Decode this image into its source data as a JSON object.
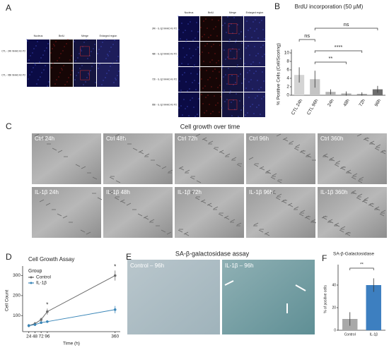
{
  "panel_labels": [
    "A",
    "B",
    "C",
    "D",
    "E",
    "F"
  ],
  "panel_a": {
    "columns": [
      "Nucleus",
      "BrdU",
      "Merge",
      "Enlarged region"
    ],
    "left_rows": [
      "CTL - 24h NHAC-Kn P2",
      "CTL - 96h NHAC-Kn P2"
    ],
    "right_rows": [
      "24h - IL-1β NHAC-Kn P2",
      "48h - IL-1β NHAC-Kn P2",
      "72h - IL-1β NHAC-Kn P2",
      "96h - IL-1β NHAC-Kn P2"
    ]
  },
  "panel_c": {
    "title": "Cell growth over time",
    "images": [
      [
        "Ctrl 24h",
        "Ctrl 48h",
        "Ctrl 72h",
        "Ctrl 96h",
        "Ctrl 360h"
      ],
      [
        "IL-1β 24h",
        "IL-1β 48h",
        "IL-1β 72h",
        "IL-1β 96h",
        "IL-1β 360h"
      ]
    ]
  },
  "panel_e": {
    "title": "SA-β-galactosidase assay",
    "images": [
      "Control – 96h",
      "IL-1β – 96h"
    ]
  },
  "chart_data": [
    {
      "type": "bar",
      "title": "BrdU incorporation (50 µM)",
      "y_label": "% Positive Cells (Cell/Scoring)",
      "categories": [
        "CTL 24h",
        "CTL 96h",
        "24h",
        "48h",
        "72h",
        "96h"
      ],
      "values": [
        4.8,
        3.8,
        0.8,
        0.4,
        0.3,
        1.4
      ],
      "errors": [
        1.8,
        2.0,
        0.6,
        0.5,
        0.4,
        0.8
      ],
      "colors": [
        "#d4d4d4",
        "#c4c4c4",
        "#b4b4b4",
        "#a4a4a4",
        "#949494",
        "#6e6e6e"
      ],
      "ylim": [
        0,
        10
      ],
      "yticks": [
        0,
        2,
        4,
        6,
        8,
        10
      ],
      "annotations": [
        {
          "text": "**",
          "between": [
            "CTL 96h",
            "48h"
          ]
        },
        {
          "text": "****",
          "between": [
            "CTL 96h",
            "72h"
          ]
        },
        {
          "text": "ns",
          "between": [
            "CTL 24h",
            "CTL 96h"
          ]
        },
        {
          "text": "ns",
          "between": [
            "CTL 96h",
            "96h"
          ]
        }
      ]
    },
    {
      "type": "line",
      "title": "Cell Growth Assay",
      "x_label": "Time (h)",
      "y_label": "Cell Count",
      "legend_title": "Group",
      "x": [
        24,
        48,
        72,
        96,
        360
      ],
      "xlim": [
        0,
        380
      ],
      "xticks": [
        24,
        48,
        72,
        96,
        360
      ],
      "ylim": [
        20,
        330
      ],
      "yticks": [
        100,
        200,
        300
      ],
      "series": [
        {
          "name": "Control",
          "color": "#6b6b6b",
          "values": [
            50,
            60,
            80,
            120,
            300
          ],
          "errors": [
            8,
            8,
            10,
            15,
            25
          ]
        },
        {
          "name": "IL-1β",
          "color": "#3a86b8",
          "values": [
            50,
            55,
            65,
            70,
            130
          ],
          "errors": [
            6,
            6,
            6,
            6,
            18
          ]
        }
      ],
      "annotations": [
        {
          "text": "*",
          "x": 96
        },
        {
          "text": "*",
          "x": 360
        }
      ]
    },
    {
      "type": "bar",
      "title": "SA-β-Galactosidase",
      "y_label": "% of positive cells",
      "categories": [
        "Control",
        "IL-1β"
      ],
      "values": [
        10,
        40
      ],
      "errors": [
        6,
        6
      ],
      "colors": [
        "#a8a8a8",
        "#3d7fc0"
      ],
      "ylim": [
        0,
        55
      ],
      "yticks": [
        0,
        20,
        40
      ],
      "annotations": [
        {
          "text": "**",
          "between": [
            "Control",
            "IL-1β"
          ]
        }
      ]
    }
  ]
}
